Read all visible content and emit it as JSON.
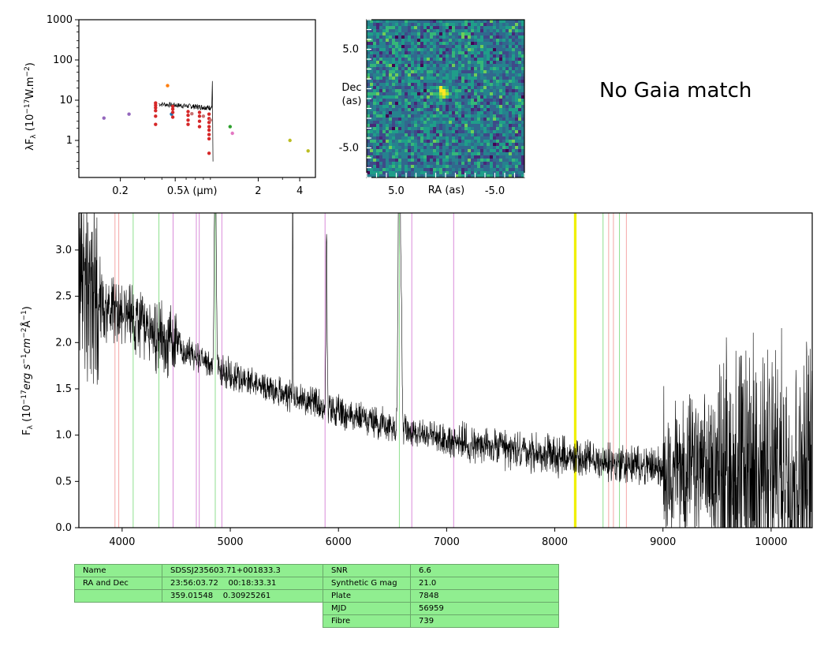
{
  "gaia_text": "No Gaia match",
  "chart_data": [
    {
      "type": "scatter",
      "name": "sed",
      "xlabel": "λ (μm)",
      "ylabel": "λF_λ (10^-17 W.m^-2)",
      "x_scale": "log",
      "y_scale": "log",
      "xlim": [
        0.1,
        5.2
      ],
      "ylim": [
        0.12,
        1000
      ],
      "x_ticks": [
        {
          "v": 0.2,
          "label": "0.2"
        },
        {
          "v": 0.5,
          "label": "0.5"
        },
        {
          "v": 2,
          "label": "2"
        },
        {
          "v": 4,
          "label": "4"
        }
      ],
      "y_ticks": [
        {
          "v": 1,
          "label": "1"
        },
        {
          "v": 10,
          "label": "10"
        },
        {
          "v": 100,
          "label": "100"
        },
        {
          "v": 1000,
          "label": "1000"
        }
      ],
      "points": [
        {
          "x": 0.152,
          "y": 3.6,
          "color": "#9467bd"
        },
        {
          "x": 0.231,
          "y": 4.5,
          "color": "#9467bd"
        },
        {
          "x": 0.44,
          "y": 23,
          "color": "#ff7f0e"
        },
        {
          "x": 0.47,
          "y": 4.5,
          "color": "#1f77b4"
        },
        {
          "x": 1.25,
          "y": 2.2,
          "color": "#2ca02c"
        },
        {
          "x": 1.3,
          "y": 1.5,
          "color": "#e377c2"
        },
        {
          "x": 3.4,
          "y": 1.0,
          "color": "#bcbd22"
        },
        {
          "x": 4.6,
          "y": 0.55,
          "color": "#bcbd22"
        },
        {
          "x": 0.36,
          "y": 2.5,
          "color": "#d62728"
        },
        {
          "x": 0.36,
          "y": 4,
          "color": "#d62728"
        },
        {
          "x": 0.36,
          "y": 5.5,
          "color": "#d62728"
        },
        {
          "x": 0.36,
          "y": 6.5,
          "color": "#d62728"
        },
        {
          "x": 0.36,
          "y": 7.5,
          "color": "#d62728"
        },
        {
          "x": 0.36,
          "y": 8.5,
          "color": "#d62728"
        },
        {
          "x": 0.48,
          "y": 3.8,
          "color": "#d62728"
        },
        {
          "x": 0.48,
          "y": 5,
          "color": "#d62728"
        },
        {
          "x": 0.48,
          "y": 6,
          "color": "#d62728"
        },
        {
          "x": 0.48,
          "y": 7,
          "color": "#d62728"
        },
        {
          "x": 0.62,
          "y": 2.5,
          "color": "#d62728"
        },
        {
          "x": 0.62,
          "y": 3.2,
          "color": "#d62728"
        },
        {
          "x": 0.62,
          "y": 4.2,
          "color": "#d62728"
        },
        {
          "x": 0.62,
          "y": 5.2,
          "color": "#d62728"
        },
        {
          "x": 0.75,
          "y": 2.2,
          "color": "#d62728"
        },
        {
          "x": 0.75,
          "y": 3,
          "color": "#d62728"
        },
        {
          "x": 0.75,
          "y": 4,
          "color": "#d62728"
        },
        {
          "x": 0.75,
          "y": 5,
          "color": "#d62728"
        },
        {
          "x": 0.88,
          "y": 1.1,
          "color": "#d62728"
        },
        {
          "x": 0.88,
          "y": 1.4,
          "color": "#d62728"
        },
        {
          "x": 0.88,
          "y": 1.8,
          "color": "#d62728"
        },
        {
          "x": 0.88,
          "y": 2.2,
          "color": "#d62728"
        },
        {
          "x": 0.88,
          "y": 2.8,
          "color": "#d62728"
        },
        {
          "x": 0.88,
          "y": 3.5,
          "color": "#d62728"
        },
        {
          "x": 0.88,
          "y": 4.5,
          "color": "#d62728"
        },
        {
          "x": 0.88,
          "y": 0.48,
          "color": "#d62728"
        },
        {
          "x": 0.66,
          "y": 4.6,
          "color": "#c87070"
        },
        {
          "x": 0.8,
          "y": 4.0,
          "color": "#c87070"
        },
        {
          "x": 0.9,
          "y": 3.2,
          "color": "#c87070"
        }
      ]
    },
    {
      "type": "heatmap",
      "name": "cutout",
      "xlabel": "RA (as)",
      "ylabel": "Dec (as)",
      "x_ticks": [
        {
          "v": 5,
          "label": "5.0"
        },
        {
          "v": -5,
          "label": "-5.0"
        }
      ],
      "y_ticks": [
        {
          "v": 5,
          "label": "5.0"
        },
        {
          "v": -5,
          "label": "-5.0"
        }
      ],
      "extent": [
        8,
        -8,
        -8,
        8
      ],
      "source": {
        "x": 0.2,
        "y": 0.6
      }
    },
    {
      "type": "line",
      "name": "spectrum",
      "xlabel": "",
      "ylabel": "F_λ (10^-17 erg s^-1 cm^-2 Å^-1)",
      "xlim": [
        3600,
        10380
      ],
      "ylim": [
        0,
        3.4
      ],
      "x_ticks": [
        4000,
        5000,
        6000,
        7000,
        8000,
        9000,
        10000
      ],
      "x_tick_labels": [
        "4000",
        "5000",
        "6000",
        "7000",
        "8000",
        "9000",
        "10000"
      ],
      "y_ticks": [
        0,
        0.5,
        1.0,
        1.5,
        2.0,
        2.5,
        3.0
      ],
      "y_tick_labels": [
        "0.0",
        "0.5",
        "1.0",
        "1.5",
        "2.0",
        "2.5",
        "3.0"
      ],
      "lines_red": [
        3934,
        3969,
        8498,
        8542,
        8662
      ],
      "lines_green": [
        4102,
        4340,
        4861,
        6563,
        8446,
        8598
      ],
      "lines_violet": [
        4471,
        4686,
        4713,
        4922,
        5876,
        6678,
        7065
      ],
      "lines_yellow": [
        8183,
        8195
      ],
      "continuum": [
        [
          3600,
          2.8
        ],
        [
          3800,
          2.45
        ],
        [
          4000,
          2.3
        ],
        [
          4300,
          2.1
        ],
        [
          4700,
          1.85
        ],
        [
          5000,
          1.65
        ],
        [
          5500,
          1.45
        ],
        [
          6000,
          1.25
        ],
        [
          6500,
          1.1
        ],
        [
          7000,
          0.95
        ],
        [
          7500,
          0.85
        ],
        [
          8000,
          0.78
        ],
        [
          8500,
          0.7
        ],
        [
          9000,
          0.65
        ],
        [
          9500,
          0.62
        ],
        [
          10000,
          0.6
        ],
        [
          10380,
          0.6
        ]
      ],
      "emission": [
        {
          "center": 4861,
          "height": 2.6,
          "width": 8
        },
        {
          "center": 5577,
          "height": 3.8,
          "width": 2
        },
        {
          "center": 5890,
          "height": 1.9,
          "width": 5
        },
        {
          "center": 6563,
          "height": 3.6,
          "width": 10
        },
        {
          "center": 6583,
          "height": 0.8,
          "width": 6
        }
      ]
    }
  ],
  "table_left": [
    [
      "Name",
      "SDSSJ235603.71+001833.3"
    ],
    [
      "RA and Dec",
      "23:56:03.72    00:18:33.31"
    ],
    [
      "",
      "359.01548    0.30925261"
    ]
  ],
  "table_right": [
    [
      "SNR",
      "6.6"
    ],
    [
      "Synthetic G mag",
      "21.0"
    ],
    [
      "Plate",
      "7848"
    ],
    [
      "MJD",
      "56959"
    ],
    [
      "Fibre",
      "739"
    ]
  ]
}
